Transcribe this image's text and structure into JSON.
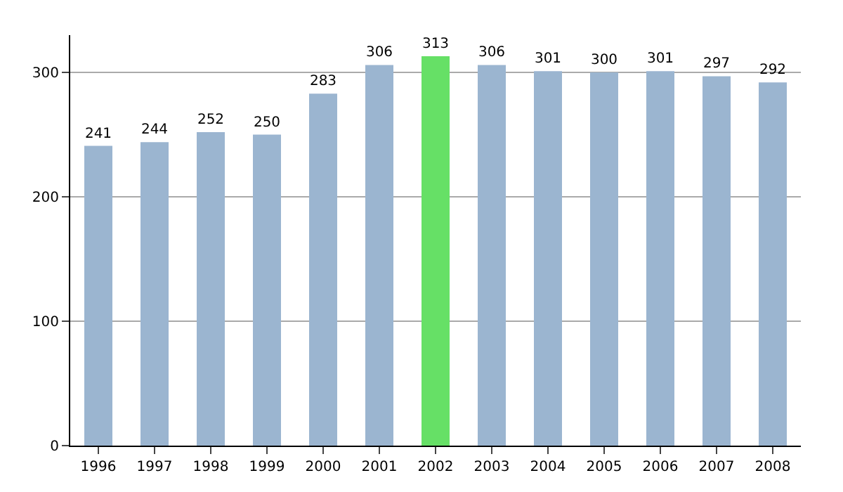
{
  "chart_data": {
    "type": "bar",
    "categories": [
      "1996",
      "1997",
      "1998",
      "1999",
      "2000",
      "2001",
      "2002",
      "2003",
      "2004",
      "2005",
      "2006",
      "2007",
      "2008"
    ],
    "values": [
      241,
      244,
      252,
      250,
      283,
      306,
      313,
      306,
      301,
      300,
      301,
      297,
      292
    ],
    "colors": [
      "#9bb5d0",
      "#9bb5d0",
      "#9bb5d0",
      "#9bb5d0",
      "#9bb5d0",
      "#9bb5d0",
      "#66e066",
      "#9bb5d0",
      "#9bb5d0",
      "#9bb5d0",
      "#9bb5d0",
      "#9bb5d0",
      "#9bb5d0"
    ],
    "ylim": [
      0,
      330
    ],
    "yticks": [
      0,
      100,
      200,
      300
    ],
    "grid": "y",
    "data_labels": true
  }
}
